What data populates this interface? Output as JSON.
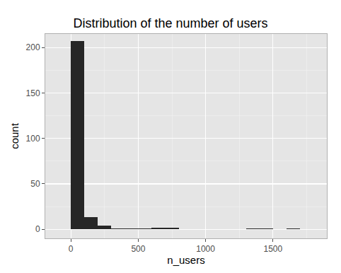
{
  "chart_data": {
    "type": "histogram",
    "title": "Distribution of the number of users",
    "x_label": "n_users",
    "y_label": "count",
    "bins": [
      0,
      100,
      200,
      300,
      400,
      500,
      600,
      700,
      800,
      900,
      1000,
      1100,
      1200,
      1300,
      1400,
      1500,
      1600,
      1700,
      1800
    ],
    "values": [
      207,
      13,
      4,
      1,
      1,
      1,
      2,
      2,
      0,
      0,
      0,
      0,
      0,
      1,
      1,
      0,
      1,
      0
    ],
    "color": "#262626",
    "xlim": [
      -190,
      1900
    ],
    "xticks": [
      0,
      500,
      1000,
      1500
    ],
    "ylim": [
      -10,
      215
    ],
    "yticks": [
      0,
      50,
      100,
      150,
      200
    ],
    "grid": true
  }
}
